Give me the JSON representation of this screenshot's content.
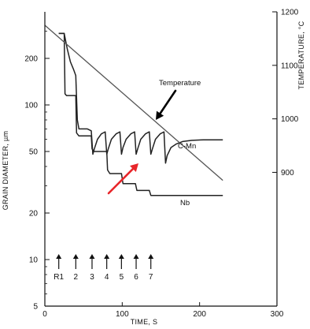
{
  "chart_data": {
    "type": "line",
    "title": "",
    "xlabel": "TIME, S",
    "ylabel": "GRAIN DIAMETER, µm",
    "y2label": "TEMPERATURE, °C",
    "xlim": [
      0,
      300
    ],
    "ylim": [
      5,
      400
    ],
    "ylog": true,
    "y2lim": [
      650,
      1200
    ],
    "grid": false,
    "x_ticks": [
      0,
      100,
      200,
      300
    ],
    "y_ticks": [
      5,
      10,
      20,
      50,
      100,
      200
    ],
    "y2_ticks": [
      900,
      1000,
      1100,
      1200
    ],
    "series": [
      {
        "name": "C-Mn",
        "axis": "left",
        "color": "#222222",
        "points": [
          [
            18,
            290
          ],
          [
            25,
            290
          ],
          [
            29,
            230
          ],
          [
            33,
            190
          ],
          [
            37,
            170
          ],
          [
            40,
            155
          ],
          [
            42,
            80
          ],
          [
            44,
            70
          ],
          [
            48,
            70
          ],
          [
            55,
            70
          ],
          [
            60,
            68
          ],
          [
            62,
            48
          ],
          [
            64,
            52
          ],
          [
            68,
            60
          ],
          [
            73,
            65
          ],
          [
            78,
            67
          ],
          [
            80,
            48
          ],
          [
            82,
            52
          ],
          [
            86,
            60
          ],
          [
            92,
            65
          ],
          [
            97,
            67
          ],
          [
            99,
            48
          ],
          [
            101,
            53
          ],
          [
            105,
            60
          ],
          [
            111,
            65
          ],
          [
            116,
            67
          ],
          [
            118,
            48
          ],
          [
            120,
            52
          ],
          [
            124,
            60
          ],
          [
            130,
            65
          ],
          [
            135,
            67
          ],
          [
            137,
            48
          ],
          [
            139,
            52
          ],
          [
            143,
            60
          ],
          [
            149,
            65
          ],
          [
            154,
            67
          ],
          [
            156,
            42
          ],
          [
            158,
            47
          ],
          [
            163,
            53
          ],
          [
            170,
            56
          ],
          [
            178,
            58
          ],
          [
            190,
            59
          ],
          [
            205,
            59.5
          ],
          [
            230,
            59.5
          ]
        ]
      },
      {
        "name": "Nb",
        "axis": "left",
        "color": "#222222",
        "points": [
          [
            18,
            290
          ],
          [
            25,
            290
          ],
          [
            26,
            118
          ],
          [
            28,
            115
          ],
          [
            40,
            115
          ],
          [
            41,
            66
          ],
          [
            44,
            63
          ],
          [
            60,
            63
          ],
          [
            61,
            52
          ],
          [
            64,
            50
          ],
          [
            80,
            50
          ],
          [
            81,
            38
          ],
          [
            84,
            36
          ],
          [
            99,
            36
          ],
          [
            101,
            31
          ],
          [
            117,
            31
          ],
          [
            119,
            28
          ],
          [
            135,
            28
          ],
          [
            137,
            26
          ],
          [
            155,
            26
          ],
          [
            230,
            26
          ]
        ]
      },
      {
        "name": "Temperature",
        "axis": "right",
        "color": "#555555",
        "points": [
          [
            0,
            1175
          ],
          [
            230,
            885
          ]
        ]
      }
    ],
    "pass_markers": {
      "labels": [
        "R1",
        "2",
        "3",
        "4",
        "5",
        "6",
        "7"
      ],
      "x": [
        18,
        40,
        61,
        80,
        99,
        118,
        137
      ]
    },
    "annotations": [
      {
        "text": "Temperature",
        "series": "Temperature"
      },
      {
        "text": "C-Mn",
        "series": "C-Mn"
      },
      {
        "text": "Nb",
        "series": "Nb"
      }
    ],
    "arrows": [
      {
        "color": "#000000",
        "target_series": "Temperature"
      },
      {
        "color": "#e8262a",
        "target_series": "C-Mn"
      }
    ]
  }
}
